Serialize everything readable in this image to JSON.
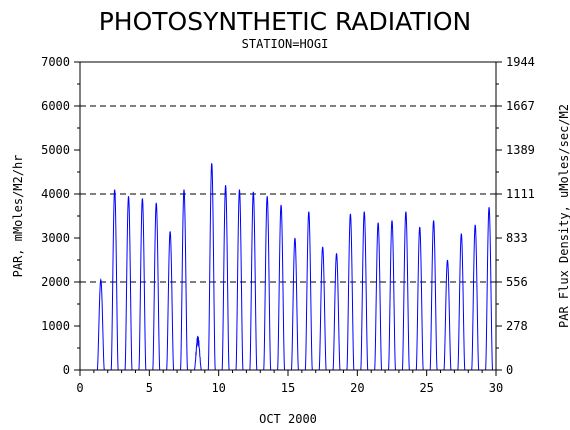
{
  "chart_data": {
    "type": "line",
    "title": "PHOTOSYNTHETIC RADIATION",
    "subtitle": "STATION=HOGI",
    "xlabel": "OCT 2000",
    "ylabel": "PAR, mMoles/M2/hr",
    "y2label": "PAR Flux Density, uMoles/sec/M2",
    "xlim": [
      0,
      30
    ],
    "ylim": [
      0,
      7000
    ],
    "y2lim": [
      0,
      1944
    ],
    "x_ticks": [
      "0",
      "5",
      "10",
      "15",
      "20",
      "25",
      "30"
    ],
    "y_ticks": [
      "0",
      "1000",
      "2000",
      "3000",
      "4000",
      "5000",
      "6000",
      "7000"
    ],
    "y2_ticks": [
      "0",
      "278",
      "556",
      "833",
      "1111",
      "1389",
      "1667",
      "1944"
    ],
    "reference_lines_y": [
      2000,
      4000,
      6000
    ],
    "line_color": "#0000ff",
    "daily_peaks": [
      {
        "day": 1,
        "peak": 2050
      },
      {
        "day": 2,
        "peak": 4100
      },
      {
        "day": 3,
        "peak": 3950
      },
      {
        "day": 4,
        "peak": 3900
      },
      {
        "day": 5,
        "peak": 3800
      },
      {
        "day": 6,
        "peak": 3150
      },
      {
        "day": 7,
        "peak": 4100
      },
      {
        "day": 8,
        "peak": 800
      },
      {
        "day": 9,
        "peak": 4700
      },
      {
        "day": 10,
        "peak": 4200
      },
      {
        "day": 11,
        "peak": 4100
      },
      {
        "day": 12,
        "peak": 4050
      },
      {
        "day": 13,
        "peak": 3950
      },
      {
        "day": 14,
        "peak": 3750
      },
      {
        "day": 15,
        "peak": 3000
      },
      {
        "day": 16,
        "peak": 3600
      },
      {
        "day": 17,
        "peak": 2800
      },
      {
        "day": 18,
        "peak": 2650
      },
      {
        "day": 19,
        "peak": 3550
      },
      {
        "day": 20,
        "peak": 3600
      },
      {
        "day": 21,
        "peak": 3350
      },
      {
        "day": 22,
        "peak": 3400
      },
      {
        "day": 23,
        "peak": 3600
      },
      {
        "day": 24,
        "peak": 3250
      },
      {
        "day": 25,
        "peak": 3400
      },
      {
        "day": 26,
        "peak": 2500
      },
      {
        "day": 27,
        "peak": 3100
      },
      {
        "day": 28,
        "peak": 3300
      },
      {
        "day": 29,
        "peak": 3700
      }
    ]
  }
}
